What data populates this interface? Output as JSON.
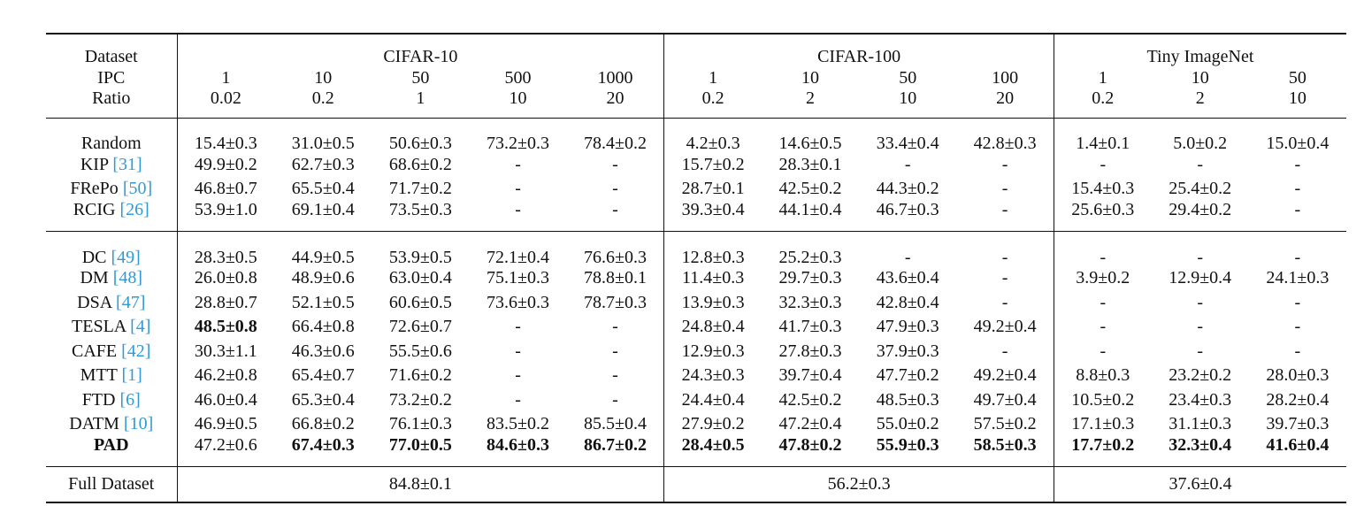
{
  "header": {
    "dataset_label": "Dataset",
    "ipc_label": "IPC",
    "ratio_label": "Ratio",
    "groups": [
      {
        "name": "CIFAR-10",
        "ipc": [
          1,
          10,
          50,
          500,
          1000
        ],
        "ratio": [
          0.02,
          0.2,
          1,
          10,
          20
        ]
      },
      {
        "name": "CIFAR-100",
        "ipc": [
          1,
          10,
          50,
          100
        ],
        "ratio": [
          0.2,
          2,
          10,
          20
        ]
      },
      {
        "name": "Tiny ImageNet",
        "ipc": [
          1,
          10,
          50
        ],
        "ratio": [
          0.2,
          2,
          10
        ]
      }
    ]
  },
  "sections": [
    [
      {
        "method": "Random",
        "cells": [
          "15.4±0.3",
          "31.0±0.5",
          "50.6±0.3",
          "73.2±0.3",
          "78.4±0.2",
          "4.2±0.3",
          "14.6±0.5",
          "33.4±0.4",
          "42.8±0.3",
          "1.4±0.1",
          "5.0±0.2",
          "15.0±0.4"
        ]
      },
      {
        "method": "KIP",
        "cite": "[31]",
        "cells": [
          "49.9±0.2",
          "62.7±0.3",
          "68.6±0.2",
          "-",
          "-",
          "15.7±0.2",
          "28.3±0.1",
          "-",
          "-",
          "-",
          "-",
          "-"
        ]
      },
      {
        "method": "FRePo",
        "cite": "[50]",
        "cells": [
          "46.8±0.7",
          "65.5±0.4",
          "71.7±0.2",
          "-",
          "-",
          "28.7±0.1",
          "42.5±0.2",
          "44.3±0.2",
          "-",
          "15.4±0.3",
          "25.4±0.2",
          "-"
        ]
      },
      {
        "method": "RCIG",
        "cite": "[26]",
        "cells": [
          "53.9±1.0",
          "69.1±0.4",
          "73.5±0.3",
          "-",
          "-",
          "39.3±0.4",
          "44.1±0.4",
          "46.7±0.3",
          "-",
          "25.6±0.3",
          "29.4±0.2",
          "-"
        ]
      }
    ],
    [
      {
        "method": "DC",
        "cite": "[49]",
        "cells": [
          "28.3±0.5",
          "44.9±0.5",
          "53.9±0.5",
          "72.1±0.4",
          "76.6±0.3",
          "12.8±0.3",
          "25.2±0.3",
          "-",
          "-",
          "-",
          "-",
          "-"
        ]
      },
      {
        "method": "DM",
        "cite": "[48]",
        "cells": [
          "26.0±0.8",
          "48.9±0.6",
          "63.0±0.4",
          "75.1±0.3",
          "78.8±0.1",
          "11.4±0.3",
          "29.7±0.3",
          "43.6±0.4",
          "-",
          "3.9±0.2",
          "12.9±0.4",
          "24.1±0.3"
        ]
      },
      {
        "method": "DSA",
        "cite": "[47]",
        "cells": [
          "28.8±0.7",
          "52.1±0.5",
          "60.6±0.5",
          "73.6±0.3",
          "78.7±0.3",
          "13.9±0.3",
          "32.3±0.3",
          "42.8±0.4",
          "-",
          "-",
          "-",
          "-"
        ]
      },
      {
        "method": "TESLA",
        "cite": "[4]",
        "cells": [
          "48.5±0.8",
          "66.4±0.8",
          "72.6±0.7",
          "-",
          "-",
          "24.8±0.4",
          "41.7±0.3",
          "47.9±0.3",
          "49.2±0.4",
          "-",
          "-",
          "-"
        ],
        "bold": [
          0
        ]
      },
      {
        "method": "CAFE",
        "cite": "[42]",
        "cells": [
          "30.3±1.1",
          "46.3±0.6",
          "55.5±0.6",
          "-",
          "-",
          "12.9±0.3",
          "27.8±0.3",
          "37.9±0.3",
          "-",
          "-",
          "-",
          "-"
        ]
      },
      {
        "method": "MTT",
        "cite": "[1]",
        "cells": [
          "46.2±0.8",
          "65.4±0.7",
          "71.6±0.2",
          "-",
          "-",
          "24.3±0.3",
          "39.7±0.4",
          "47.7±0.2",
          "49.2±0.4",
          "8.8±0.3",
          "23.2±0.2",
          "28.0±0.3"
        ]
      },
      {
        "method": "FTD",
        "cite": "[6]",
        "cells": [
          "46.0±0.4",
          "65.3±0.4",
          "73.2±0.2",
          "-",
          "-",
          "24.4±0.4",
          "42.5±0.2",
          "48.5±0.3",
          "49.7±0.4",
          "10.5±0.2",
          "23.4±0.3",
          "28.2±0.4"
        ]
      },
      {
        "method": "DATM",
        "cite": "[10]",
        "cells": [
          "46.9±0.5",
          "66.8±0.2",
          "76.1±0.3",
          "83.5±0.2",
          "85.5±0.4",
          "27.9±0.2",
          "47.2±0.4",
          "55.0±0.2",
          "57.5±0.2",
          "17.1±0.3",
          "31.1±0.3",
          "39.7±0.3"
        ]
      },
      {
        "method": "PAD",
        "bold_method": true,
        "cells": [
          "47.2±0.6",
          "67.4±0.3",
          "77.0±0.5",
          "84.6±0.3",
          "86.7±0.2",
          "28.4±0.5",
          "47.8±0.2",
          "55.9±0.3",
          "58.5±0.3",
          "17.7±0.2",
          "32.3±0.4",
          "41.6±0.4"
        ],
        "bold": [
          1,
          2,
          3,
          4,
          5,
          6,
          7,
          8,
          9,
          10,
          11
        ]
      }
    ]
  ],
  "full": {
    "label": "Full Dataset",
    "values": [
      "84.8±0.1",
      "56.2±0.3",
      "37.6±0.4"
    ]
  }
}
